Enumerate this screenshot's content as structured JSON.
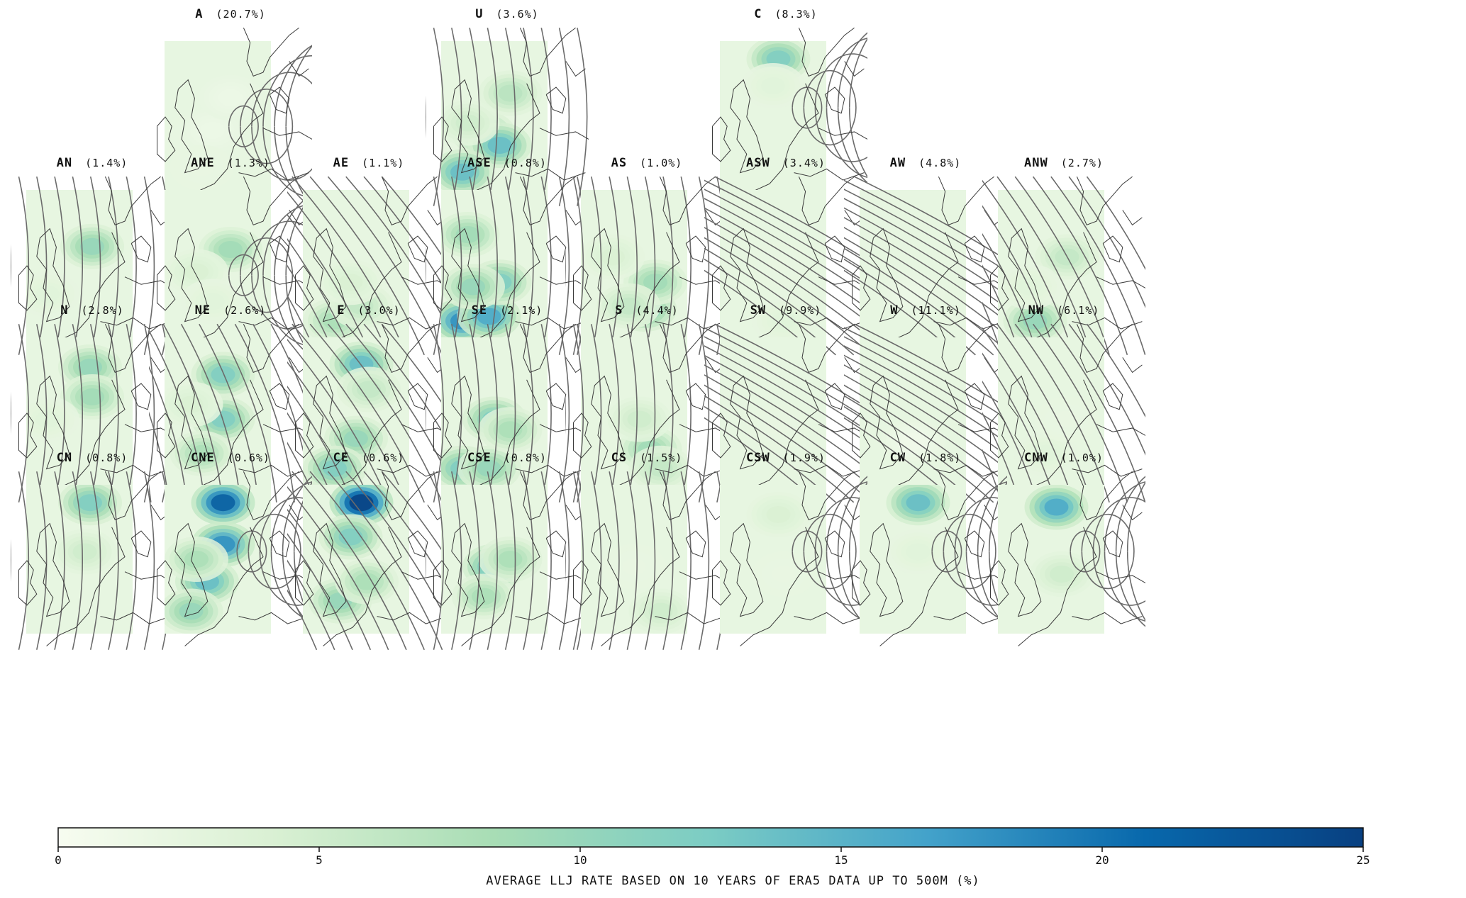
{
  "panels": [
    {
      "code": "A",
      "pct": "(20.7%)",
      "jets": [
        [
          0.25,
          0.65,
          2
        ],
        [
          0.45,
          0.6,
          1.5
        ],
        [
          0.62,
          0.38,
          1.5
        ],
        [
          0.35,
          0.85,
          2
        ]
      ],
      "pattern": "anticyclone"
    },
    {
      "code": "U",
      "pct": "(3.6%)",
      "jets": [
        [
          0.4,
          0.62,
          10
        ],
        [
          0.55,
          0.7,
          14
        ],
        [
          0.2,
          0.88,
          14
        ],
        [
          0.65,
          0.35,
          7
        ],
        [
          0.25,
          0.55,
          5
        ]
      ],
      "pattern": "southerly"
    },
    {
      "code": "C",
      "pct": "(8.3%)",
      "jets": [
        [
          0.55,
          0.12,
          12
        ],
        [
          0.5,
          0.3,
          3
        ]
      ],
      "pattern": "cyclone"
    },
    {
      "code": "AN",
      "pct": "(1.4%)",
      "jets": [
        [
          0.62,
          0.38,
          10
        ],
        [
          0.2,
          0.7,
          3
        ]
      ],
      "pattern": "northerly"
    },
    {
      "code": "ANE",
      "pct": "(1.3%)",
      "jets": [
        [
          0.62,
          0.4,
          9
        ],
        [
          0.3,
          0.55,
          4
        ],
        [
          0.45,
          0.75,
          3
        ]
      ],
      "pattern": "anticyclone"
    },
    {
      "code": "AE",
      "pct": "(1.1%)",
      "jets": [
        [
          0.3,
          0.88,
          8
        ],
        [
          0.55,
          0.78,
          6
        ],
        [
          0.45,
          0.62,
          4
        ]
      ],
      "pattern": "easterly"
    },
    {
      "code": "ASE",
      "pct": "(0.8%)",
      "jets": [
        [
          0.2,
          0.88,
          18
        ],
        [
          0.45,
          0.85,
          16
        ],
        [
          0.55,
          0.62,
          12
        ],
        [
          0.3,
          0.65,
          10
        ],
        [
          0.25,
          0.3,
          9
        ]
      ],
      "pattern": "southerly"
    },
    {
      "code": "AS",
      "pct": "(1.0%)",
      "jets": [
        [
          0.6,
          0.8,
          12
        ],
        [
          0.7,
          0.62,
          9
        ],
        [
          0.45,
          0.78,
          6
        ],
        [
          0.3,
          0.45,
          4
        ]
      ],
      "pattern": "southerly"
    },
    {
      "code": "ASW",
      "pct": "(3.4%)",
      "jets": [
        [
          0.55,
          0.5,
          2
        ],
        [
          0.6,
          0.88,
          3
        ]
      ],
      "pattern": "westerly"
    },
    {
      "code": "AW",
      "pct": "(4.8%)",
      "jets": [
        [
          0.5,
          0.7,
          1.5
        ]
      ],
      "pattern": "westerly"
    },
    {
      "code": "ANW",
      "pct": "(2.7%)",
      "jets": [
        [
          0.65,
          0.45,
          6
        ],
        [
          0.35,
          0.88,
          10
        ],
        [
          0.3,
          0.65,
          3
        ]
      ],
      "pattern": "northwesterly"
    },
    {
      "code": "N",
      "pct": "(2.8%)",
      "jets": [
        [
          0.6,
          0.2,
          10
        ],
        [
          0.62,
          0.4,
          9
        ],
        [
          0.2,
          0.55,
          3
        ]
      ],
      "pattern": "northerly"
    },
    {
      "code": "NE",
      "pct": "(2.6%)",
      "jets": [
        [
          0.55,
          0.25,
          12
        ],
        [
          0.55,
          0.55,
          12
        ],
        [
          0.35,
          0.78,
          8
        ],
        [
          0.25,
          0.45,
          4
        ]
      ],
      "pattern": "northeasterly"
    },
    {
      "code": "E",
      "pct": "(3.0%)",
      "jets": [
        [
          0.55,
          0.18,
          14
        ],
        [
          0.5,
          0.68,
          10
        ],
        [
          0.3,
          0.88,
          12
        ],
        [
          0.62,
          0.35,
          6
        ]
      ],
      "pattern": "easterly"
    },
    {
      "code": "SE",
      "pct": "(2.1%)",
      "jets": [
        [
          0.5,
          0.55,
          12
        ],
        [
          0.2,
          0.88,
          12
        ],
        [
          0.45,
          0.88,
          10
        ],
        [
          0.65,
          0.62,
          8
        ]
      ],
      "pattern": "southerly"
    },
    {
      "code": "S",
      "pct": "(4.4%)",
      "jets": [
        [
          0.65,
          0.75,
          9
        ],
        [
          0.55,
          0.55,
          5
        ],
        [
          0.75,
          0.88,
          6
        ]
      ],
      "pattern": "southerly"
    },
    {
      "code": "SW",
      "pct": "(9.9%)",
      "jets": [
        [
          0.55,
          0.6,
          2
        ]
      ],
      "pattern": "westerly"
    },
    {
      "code": "W",
      "pct": "(11.1%)",
      "jets": [
        [
          0.5,
          0.7,
          1
        ]
      ],
      "pattern": "westerly"
    },
    {
      "code": "NW",
      "pct": "(6.1%)",
      "jets": [
        [
          0.45,
          0.78,
          3
        ],
        [
          0.65,
          0.55,
          2
        ]
      ],
      "pattern": "northwesterly"
    },
    {
      "code": "CN",
      "pct": "(0.8%)",
      "jets": [
        [
          0.6,
          0.12,
          12
        ],
        [
          0.55,
          0.45,
          5
        ]
      ],
      "pattern": "northerly"
    },
    {
      "code": "CNE",
      "pct": "(0.6%)",
      "jets": [
        [
          0.55,
          0.12,
          22
        ],
        [
          0.55,
          0.4,
          18
        ],
        [
          0.4,
          0.65,
          14
        ],
        [
          0.25,
          0.85,
          10
        ],
        [
          0.3,
          0.5,
          8
        ]
      ],
      "pattern": "cyclone"
    },
    {
      "code": "CE",
      "pct": "(0.6%)",
      "jets": [
        [
          0.55,
          0.12,
          25
        ],
        [
          0.45,
          0.35,
          12
        ],
        [
          0.35,
          0.78,
          10
        ],
        [
          0.6,
          0.65,
          8
        ]
      ],
      "pattern": "easterly"
    },
    {
      "code": "CSE",
      "pct": "(0.8%)",
      "jets": [
        [
          0.5,
          0.55,
          14
        ],
        [
          0.4,
          0.75,
          8
        ],
        [
          0.65,
          0.5,
          8
        ]
      ],
      "pattern": "southerly"
    },
    {
      "code": "CS",
      "pct": "(1.5%)",
      "jets": [
        [
          0.75,
          0.85,
          5
        ],
        [
          0.5,
          0.55,
          2
        ]
      ],
      "pattern": "southerly"
    },
    {
      "code": "CSW",
      "pct": "(1.9%)",
      "jets": [
        [
          0.55,
          0.2,
          4
        ],
        [
          0.6,
          0.6,
          2
        ]
      ],
      "pattern": "cyclone"
    },
    {
      "code": "CW",
      "pct": "(1.8%)",
      "jets": [
        [
          0.55,
          0.12,
          14
        ],
        [
          0.55,
          0.45,
          3
        ]
      ],
      "pattern": "cyclone"
    },
    {
      "code": "CNW",
      "pct": "(1.0%)",
      "jets": [
        [
          0.55,
          0.15,
          16
        ],
        [
          0.6,
          0.6,
          5
        ]
      ],
      "pattern": "cyclone"
    }
  ],
  "colorbar": {
    "min": 0,
    "max": 25,
    "ticks": [
      0,
      5,
      10,
      15,
      20,
      25
    ],
    "tick_labels": [
      "0",
      "5",
      "10",
      "15",
      "20",
      "25"
    ],
    "label": "AVERAGE LLJ RATE BASED ON 10 YEARS OF ERA5 DATA UP TO 500M (%)",
    "colors": [
      "#f7fcf0",
      "#d9f0d3",
      "#a8ddb5",
      "#7bccc4",
      "#43a2ca",
      "#0868ac",
      "#084081"
    ]
  },
  "colors": {
    "streamline": "#6b6b6b",
    "coast": "#3a3a3a",
    "isobar": "#b5b5b5"
  }
}
